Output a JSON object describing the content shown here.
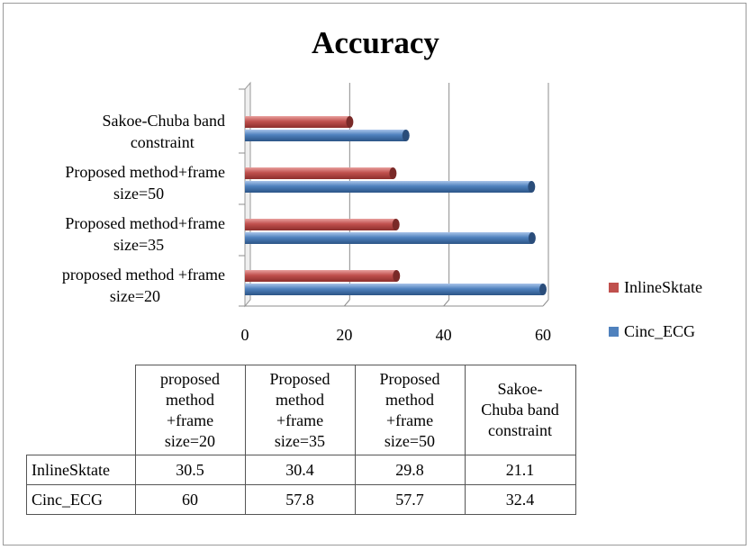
{
  "chart_data": {
    "type": "bar",
    "orientation": "horizontal",
    "title": "Accuracy",
    "categories": [
      "proposed method +frame size=20",
      "Proposed method+frame size=35",
      "Proposed method+frame size=50",
      "Sakoe-Chuba band constraint"
    ],
    "category_label_lines": [
      [
        "proposed method +frame",
        "size=20"
      ],
      [
        "Proposed method+frame",
        "size=35"
      ],
      [
        "Proposed method+frame",
        "size=50"
      ],
      [
        "Sakoe-Chuba band",
        "constraint"
      ]
    ],
    "series": [
      {
        "name": "InlineSktate",
        "color": "#c0504d",
        "values": [
          30.5,
          30.4,
          29.8,
          21.1
        ]
      },
      {
        "name": "Cinc_ECG",
        "color": "#4f81bd",
        "values": [
          60,
          57.8,
          57.7,
          32.4
        ]
      }
    ],
    "xlim": [
      0,
      60
    ],
    "xticks": [
      0,
      20,
      40,
      60
    ],
    "grid": true,
    "legend_position": "right"
  },
  "table": {
    "headers": [
      [
        "proposed",
        "method",
        "+frame",
        "size=20"
      ],
      [
        "Proposed",
        "method",
        "+frame",
        "size=35"
      ],
      [
        "Proposed",
        "method",
        "+frame",
        "size=50"
      ],
      [
        "Sakoe-",
        "Chuba band",
        "constraint"
      ]
    ],
    "rows": [
      {
        "label": "InlineSktate",
        "values": [
          "30.5",
          "30.4",
          "29.8",
          "21.1"
        ]
      },
      {
        "label": "Cinc_ECG",
        "values": [
          "60",
          "57.8",
          "57.7",
          "32.4"
        ]
      }
    ]
  }
}
